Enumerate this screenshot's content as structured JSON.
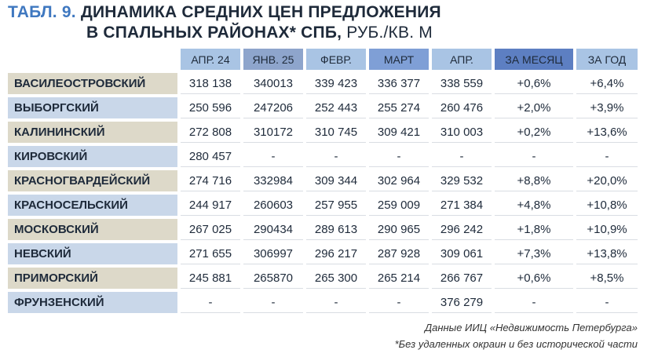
{
  "header": {
    "label": "ТАБЛ. 9.",
    "title_line1": "ДИНАМИКА СРЕДНИХ ЦЕН ПРЕДЛОЖЕНИЯ",
    "title_line2": "В СПАЛЬНЫХ РАЙОНАХ* СПБ,",
    "unit": "РУБ./КВ. М"
  },
  "table": {
    "columns": [
      "АПР. 24",
      "ЯНВ. 25",
      "ФЕВР.",
      "МАРТ",
      "АПР.",
      "ЗА МЕСЯЦ",
      "ЗА ГОД"
    ],
    "rows": [
      [
        "ВАСИЛЕОСТРОВСКИЙ",
        "318 138",
        "340013",
        "339 423",
        "336 377",
        "338 559",
        "+0,6%",
        "+6,4%"
      ],
      [
        "ВЫБОРГСКИЙ",
        "250 596",
        "247206",
        "252 443",
        "255 274",
        "260 476",
        "+2,0%",
        "+3,9%"
      ],
      [
        "КАЛИНИНСКИЙ",
        "272 808",
        "310172",
        "310 745",
        "309 421",
        "310 003",
        "+0,2%",
        "+13,6%"
      ],
      [
        "КИРОВСКИЙ",
        "280 457",
        "-",
        "-",
        "-",
        "-",
        "-",
        "-"
      ],
      [
        "КРАСНОГВАРДЕЙСКИЙ",
        "274 716",
        "332984",
        "309 344",
        "302 964",
        "329 532",
        "+8,8%",
        "+20,0%"
      ],
      [
        "КРАСНОСЕЛЬСКИЙ",
        "244 917",
        "260603",
        "257 955",
        "259 009",
        "271 384",
        "+4,8%",
        "+10,8%"
      ],
      [
        "МОСКОВСКИЙ",
        "267 025",
        "290434",
        "289 613",
        "290 965",
        "296 242",
        "+1,8%",
        "+10,9%"
      ],
      [
        "НЕВСКИЙ",
        "271 655",
        "306997",
        "296 217",
        "287 928",
        "309 061",
        "+7,3%",
        "+13,8%"
      ],
      [
        "ПРИМОРСКИЙ",
        "245 881",
        "265870",
        "265 300",
        "265 214",
        "266 767",
        "+0,6%",
        "+8,5%"
      ],
      [
        "ФРУНЗЕНСКИЙ",
        "-",
        "-",
        "-",
        "-",
        "376 279",
        "-",
        "-"
      ]
    ]
  },
  "footer": {
    "source": "Данные ИИЦ «Недвижимость Петербурга»",
    "note": "*Без удаленных окраин и без исторической части"
  }
}
